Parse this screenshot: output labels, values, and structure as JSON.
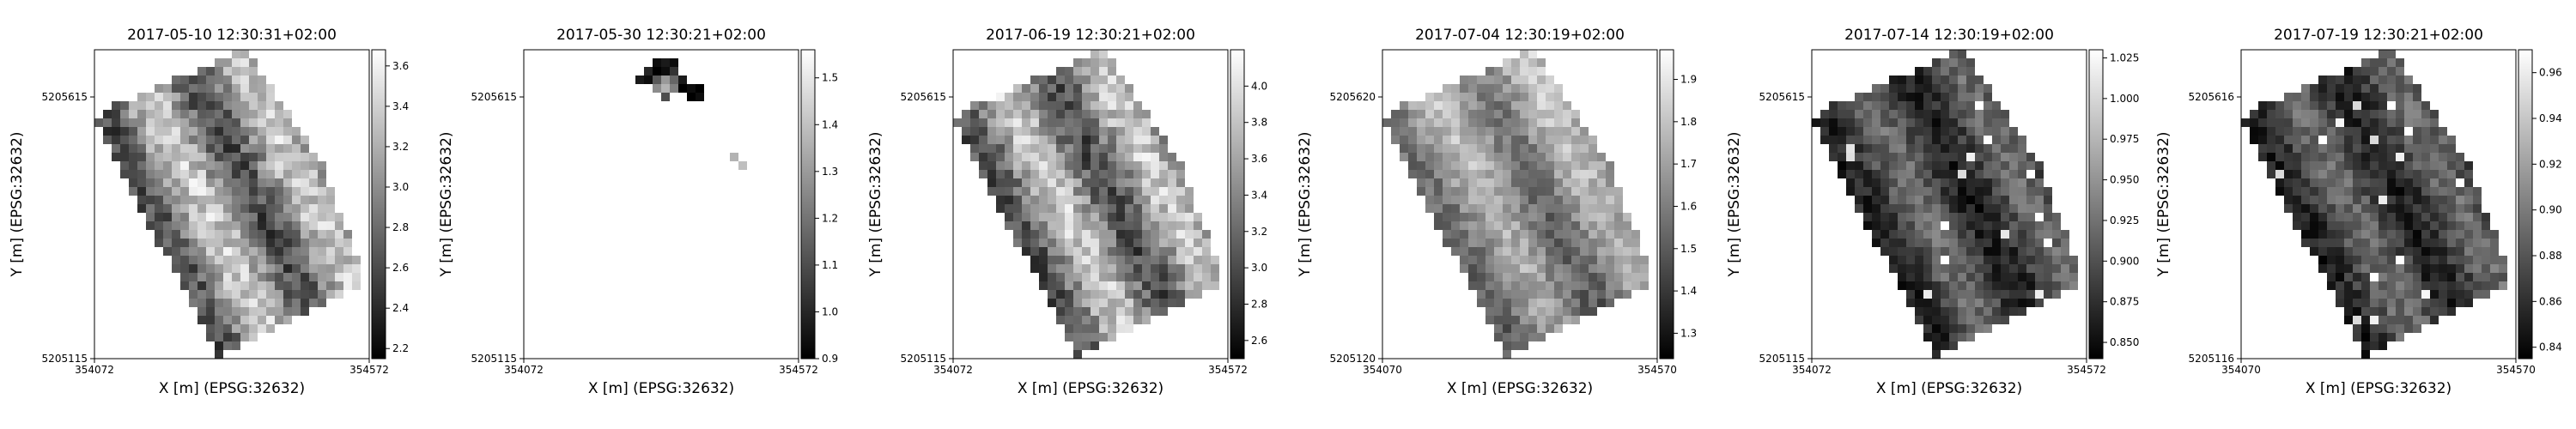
{
  "chart_data": [
    {
      "type": "heatmap",
      "title": "2017-05-10 12:30:31+02:00",
      "xlabel": "X [m] (EPSG:32632)",
      "ylabel": "Y [m] (EPSG:32632)",
      "xticks": [
        "354072",
        "354572"
      ],
      "yticks": [
        "5205615",
        "5205115"
      ],
      "colorbar": {
        "ticks": [
          "2.2",
          "2.4",
          "2.6",
          "2.8",
          "3.0",
          "3.2",
          "3.4",
          "3.6"
        ],
        "min": 2.15,
        "max": 3.68
      },
      "colormap": "greys (black = low, white = high)"
    },
    {
      "type": "heatmap",
      "title": "2017-05-30 12:30:21+02:00",
      "xlabel": "X [m] (EPSG:32632)",
      "ylabel": "Y [m] (EPSG:32632)",
      "xticks": [
        "354072",
        "354572"
      ],
      "yticks": [
        "5205615",
        "5205115"
      ],
      "colorbar": {
        "ticks": [
          "0.9",
          "1.0",
          "1.1",
          "1.2",
          "1.3",
          "1.4",
          "1.5"
        ],
        "min": 0.9,
        "max": 1.56
      },
      "colormap": "greys (black = low, white = high)"
    },
    {
      "type": "heatmap",
      "title": "2017-06-19 12:30:21+02:00",
      "xlabel": "X [m] (EPSG:32632)",
      "ylabel": "Y [m] (EPSG:32632)",
      "xticks": [
        "354072",
        "354572"
      ],
      "yticks": [
        "5205615",
        "5205115"
      ],
      "colorbar": {
        "ticks": [
          "2.6",
          "2.8",
          "3.0",
          "3.2",
          "3.4",
          "3.6",
          "3.8",
          "4.0"
        ],
        "min": 2.5,
        "max": 4.2
      },
      "colormap": "greys (black = low, white = high)"
    },
    {
      "type": "heatmap",
      "title": "2017-07-04 12:30:19+02:00",
      "xlabel": "X [m] (EPSG:32632)",
      "ylabel": "Y [m] (EPSG:32632)",
      "xticks": [
        "354070",
        "354570"
      ],
      "yticks": [
        "5205620",
        "5205120"
      ],
      "colorbar": {
        "ticks": [
          "1.3",
          "1.4",
          "1.5",
          "1.6",
          "1.7",
          "1.8",
          "1.9"
        ],
        "min": 1.24,
        "max": 1.97
      },
      "colormap": "greys (black = low, white = high)"
    },
    {
      "type": "heatmap",
      "title": "2017-07-14 12:30:19+02:00",
      "xlabel": "X [m] (EPSG:32632)",
      "ylabel": "Y [m] (EPSG:32632)",
      "xticks": [
        "354072",
        "354572"
      ],
      "yticks": [
        "5205615",
        "5205115"
      ],
      "colorbar": {
        "ticks": [
          "0.850",
          "0.875",
          "0.900",
          "0.925",
          "0.950",
          "0.975",
          "1.000",
          "1.025"
        ],
        "min": 0.84,
        "max": 1.03
      },
      "colormap": "greys (black = low, white = high)"
    },
    {
      "type": "heatmap",
      "title": "2017-07-19 12:30:21+02:00",
      "xlabel": "X [m] (EPSG:32632)",
      "ylabel": "Y [m] (EPSG:32632)",
      "xticks": [
        "354070",
        "354570"
      ],
      "yticks": [
        "5205616",
        "5205116"
      ],
      "colorbar": {
        "ticks": [
          "0.84",
          "0.86",
          "0.88",
          "0.90",
          "0.92",
          "0.94",
          "0.96"
        ],
        "min": 0.835,
        "max": 0.97
      },
      "colormap": "greys (black = low, white = high)"
    }
  ]
}
